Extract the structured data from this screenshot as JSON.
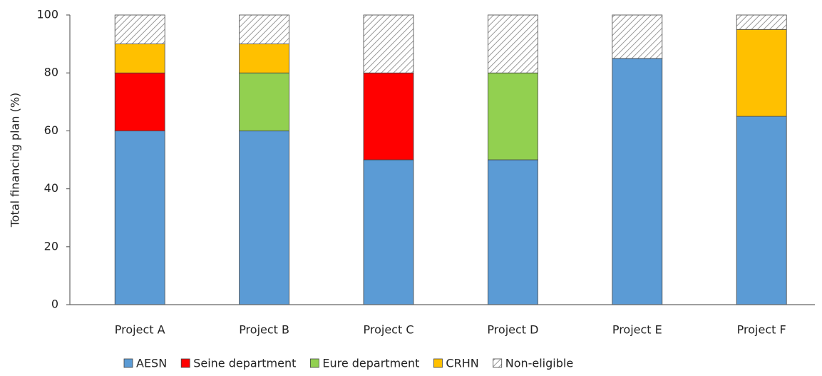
{
  "chart_data": {
    "type": "stacked_bar",
    "ylabel": "Total financing plan (%)",
    "categories": [
      "Project A",
      "Project B",
      "Project C",
      "Project D",
      "Project E",
      "Project F"
    ],
    "series": [
      {
        "name": "AESN",
        "color": "#5b9bd5",
        "values": [
          60,
          60,
          50,
          50,
          85,
          65
        ]
      },
      {
        "name": "Seine department",
        "color": "#ff0000",
        "values": [
          20,
          0,
          30,
          0,
          0,
          0
        ]
      },
      {
        "name": "Eure department",
        "color": "#92d050",
        "values": [
          0,
          20,
          0,
          30,
          0,
          0
        ]
      },
      {
        "name": "CRHN",
        "color": "#ffc000",
        "values": [
          10,
          10,
          0,
          0,
          0,
          30
        ]
      },
      {
        "name": "Non-eligible",
        "color": "#ffffff",
        "hatch": true,
        "values": [
          10,
          10,
          20,
          20,
          15,
          5
        ]
      }
    ],
    "ylim": [
      0,
      100
    ],
    "yticks": [
      0,
      20,
      40,
      60,
      80,
      100
    ],
    "grid": false,
    "legend": "bottom"
  }
}
